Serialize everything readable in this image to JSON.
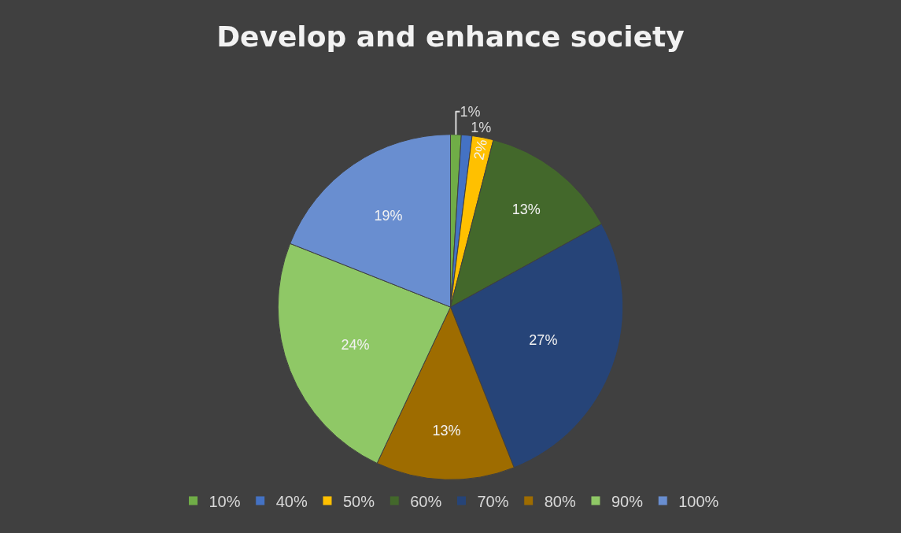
{
  "chart_data": {
    "type": "pie",
    "title": "Develop and enhance society",
    "categories": [
      "10%",
      "40%",
      "50%",
      "60%",
      "70%",
      "80%",
      "90%",
      "100%"
    ],
    "values": [
      1,
      1,
      2,
      13,
      27,
      13,
      24,
      19
    ],
    "value_labels": [
      "1%",
      "1%",
      "2%",
      "13%",
      "27%",
      "13%",
      "24%",
      "19%"
    ],
    "colors": [
      "#70ad47",
      "#4472c4",
      "#ffc000",
      "#43682b",
      "#264478",
      "#9e6c00",
      "#8fc866",
      "#698ed0"
    ],
    "legend": "bottom"
  }
}
